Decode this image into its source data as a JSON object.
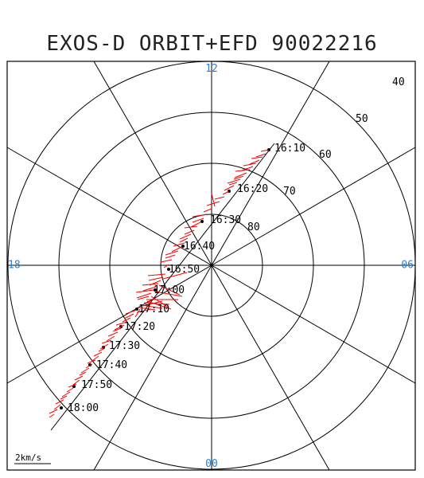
{
  "title": "EXOS-D ORBIT+EFD 90022216",
  "mlt_labels": {
    "top": "12",
    "left": "18",
    "right": "06",
    "bottom": "00"
  },
  "latitude_labels": [
    "40",
    "50",
    "60",
    "70",
    "80"
  ],
  "time_labels": [
    "16:10",
    "16:20",
    "16:30",
    "16:40",
    "16:50",
    "17:00",
    "17:10",
    "17:20",
    "17:30",
    "17:40",
    "17:50",
    "18:00"
  ],
  "scale_label": "2km/s",
  "colors": {
    "vectors": "#ff0000",
    "mlt_labels": "#2a7fd4",
    "grid": "#000000"
  }
}
